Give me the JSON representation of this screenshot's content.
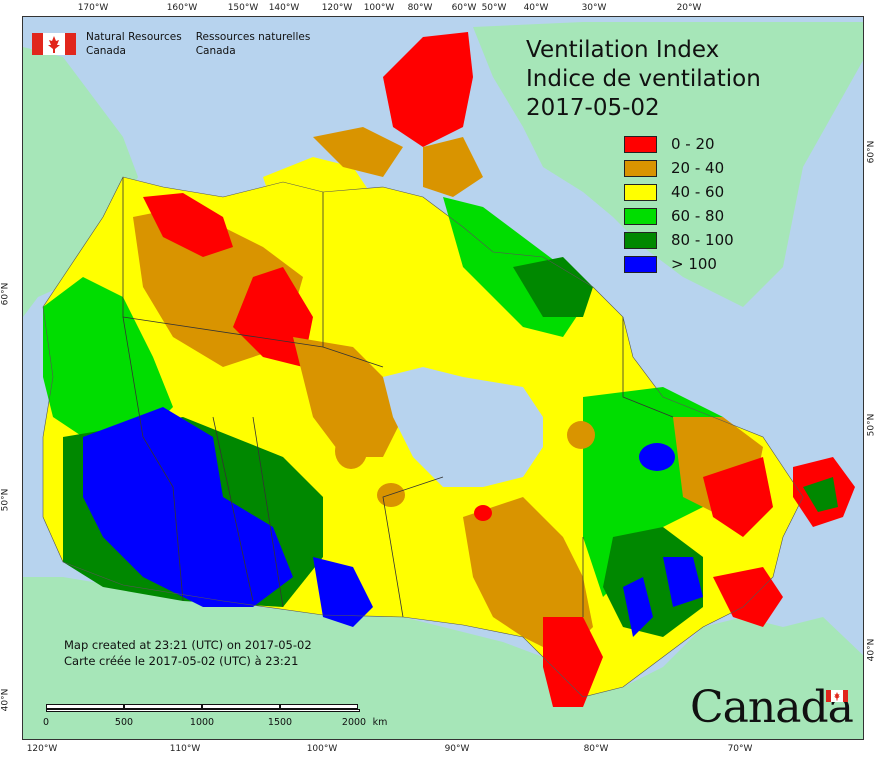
{
  "map": {
    "title_en": "Ventilation Index",
    "title_fr": "Indice de ventilation",
    "date": "2017-05-02"
  },
  "agency": {
    "name_en_line1": "Natural Resources",
    "name_en_line2": "Canada",
    "name_fr_line1": "Ressources naturelles",
    "name_fr_line2": "Canada",
    "flag_icon": "canada-flag-icon"
  },
  "legend": [
    {
      "label": "0 - 20",
      "color": "#ff0000"
    },
    {
      "label": "20 - 40",
      "color": "#d99400"
    },
    {
      "label": "40 - 60",
      "color": "#ffff00"
    },
    {
      "label": "60 - 80",
      "color": "#00dd00"
    },
    {
      "label": "80 - 100",
      "color": "#008800"
    },
    {
      "label": "> 100",
      "color": "#0000ff"
    }
  ],
  "colors": {
    "ocean": "#b7d3ee",
    "land_outside": "#a6e6b8",
    "border_lines": "#333333"
  },
  "credit": {
    "line_en": "Map created at 23:21 (UTC) on 2017-05-02",
    "line_fr": "Carte créée le 2017-05-02 (UTC) à 23:21"
  },
  "scale": {
    "labels": [
      "0",
      "500",
      "1000",
      "1500",
      "2000"
    ],
    "unit": "km"
  },
  "ticks": {
    "top": [
      "170°W",
      "160°W",
      "150°W",
      "140°W",
      "120°W",
      "100°W",
      "80°W",
      "60°W",
      "50°W",
      "40°W",
      "30°W",
      "20°W"
    ],
    "bottom": [
      "120°W",
      "110°W",
      "100°W",
      "90°W",
      "80°W",
      "70°W"
    ],
    "left": [
      "60°N",
      "50°N",
      "40°N"
    ],
    "right": [
      "60°N",
      "50°N",
      "40°N"
    ]
  },
  "wordmark": "Canada"
}
